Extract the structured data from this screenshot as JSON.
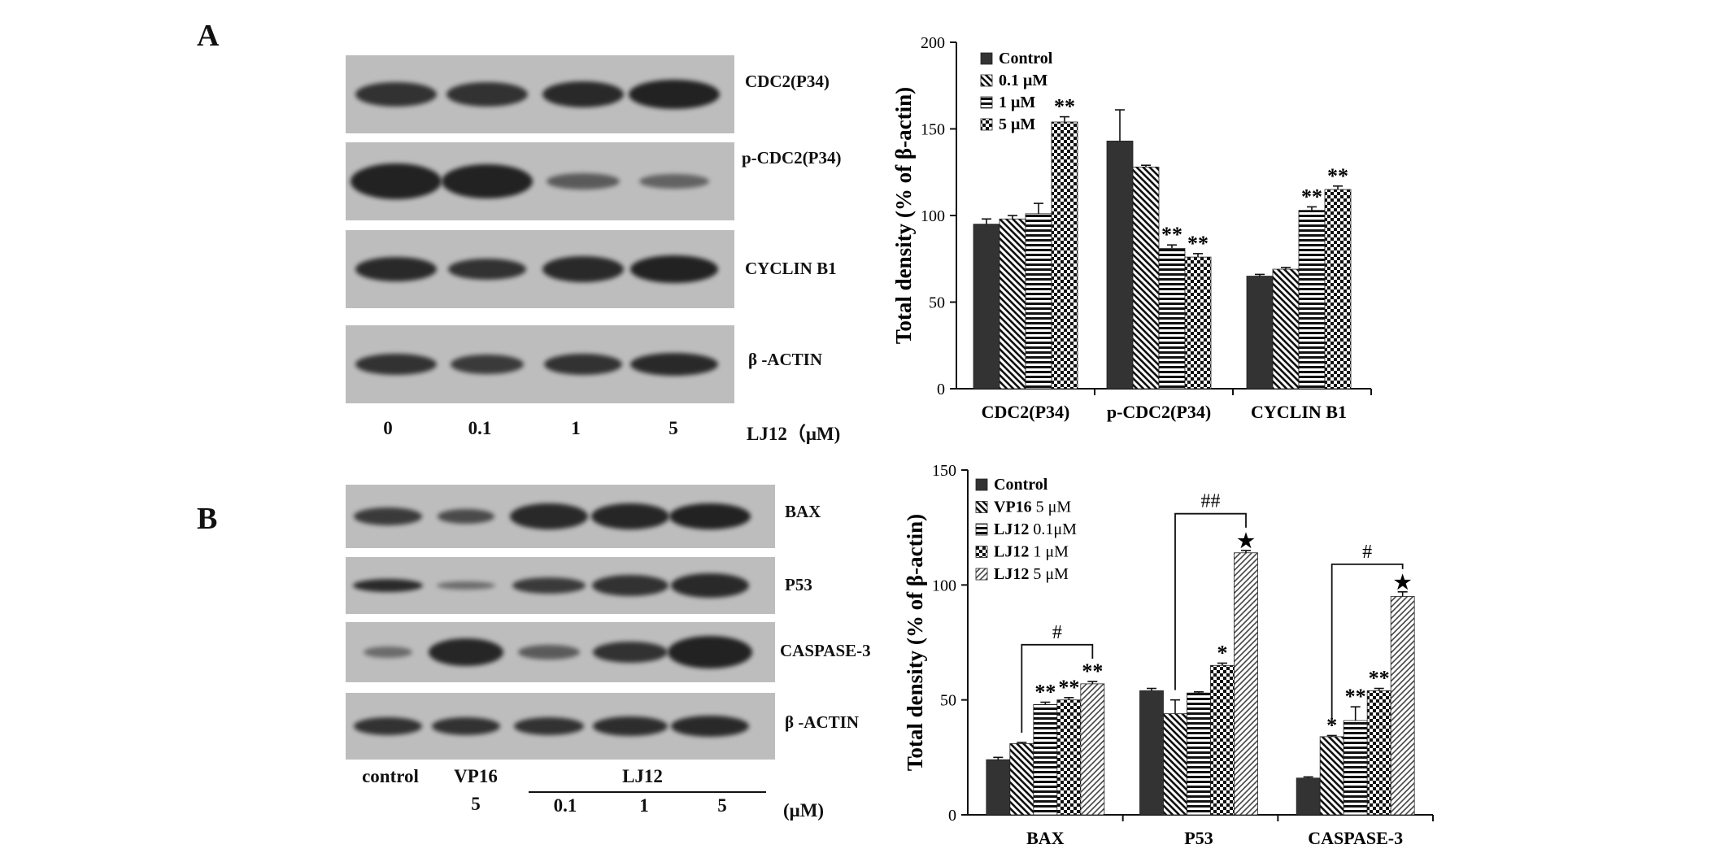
{
  "panels": {
    "A": {
      "letter": "A",
      "blot": {
        "rows": [
          "CDC2(P34)",
          "p-CDC2(P34)",
          "CYCLIN B1",
          "β -ACTIN"
        ],
        "lanes": [
          "0",
          "0.1",
          "1",
          "5"
        ],
        "unit": "LJ12（μM)"
      }
    },
    "B": {
      "letter": "B",
      "blot": {
        "rows": [
          "BAX",
          "P53",
          "CASPASE-3",
          "β -ACTIN"
        ],
        "lanes": [
          "control",
          "VP16",
          "0.1",
          "1",
          "5"
        ],
        "vp16_dose": "5",
        "group_label": "LJ12",
        "unit": "(μM)"
      }
    }
  },
  "chart_data": [
    {
      "type": "bar",
      "ylabel": "Total density (% of β-actin)",
      "ylim": [
        0,
        200
      ],
      "yticks": [
        0,
        50,
        100,
        150,
        200
      ],
      "categories": [
        "CDC2(P34)",
        "p-CDC2(P34)",
        "CYCLIN B1"
      ],
      "legend_position": "top-left",
      "series": [
        {
          "name": "Control",
          "pattern": "solid",
          "values": [
            95,
            143,
            65
          ],
          "errors": [
            3,
            18,
            1
          ]
        },
        {
          "name": "0.1 μM",
          "pattern": "diag-back",
          "values": [
            98,
            128,
            69
          ],
          "errors": [
            2,
            1,
            1
          ]
        },
        {
          "name": "1 μM",
          "pattern": "horiz",
          "values": [
            101,
            81,
            103
          ],
          "errors": [
            6,
            2,
            2
          ]
        },
        {
          "name": "5 μM",
          "pattern": "check",
          "values": [
            154,
            76,
            115
          ],
          "errors": [
            3,
            2,
            2
          ]
        }
      ],
      "annotations": [
        {
          "category": 0,
          "series": 3,
          "text": "**"
        },
        {
          "category": 1,
          "series": 2,
          "text": "**"
        },
        {
          "category": 1,
          "series": 3,
          "text": "**"
        },
        {
          "category": 2,
          "series": 2,
          "text": "**"
        },
        {
          "category": 2,
          "series": 3,
          "text": "**"
        }
      ]
    },
    {
      "type": "bar",
      "ylabel": "Total density (% of β-actin)",
      "ylim": [
        0,
        150
      ],
      "yticks": [
        0,
        50,
        100,
        150
      ],
      "categories": [
        "BAX",
        "P53",
        "CASPASE-3"
      ],
      "legend_position": "top-left",
      "series": [
        {
          "name_bold": "Control",
          "name_rest": "",
          "pattern": "solid",
          "values": [
            24,
            54,
            16
          ],
          "errors": [
            1,
            1,
            0.5
          ]
        },
        {
          "name_bold": "VP16",
          "name_rest": " 5 μM",
          "pattern": "diag-back",
          "values": [
            31,
            44,
            34
          ],
          "errors": [
            0.5,
            6,
            0.5
          ]
        },
        {
          "name_bold": "LJ12",
          "name_rest": " 0.1μM",
          "pattern": "horiz",
          "values": [
            48,
            53,
            41
          ],
          "errors": [
            1,
            0.5,
            6
          ]
        },
        {
          "name_bold": "LJ12",
          "name_rest": " 1  μM",
          "pattern": "check",
          "values": [
            50,
            65,
            54
          ],
          "errors": [
            1,
            1,
            1
          ]
        },
        {
          "name_bold": "LJ12",
          "name_rest": " 5  μM",
          "pattern": "diag-fwd",
          "values": [
            57,
            114,
            95
          ],
          "errors": [
            1,
            1,
            2
          ]
        }
      ],
      "annotations": [
        {
          "category": 0,
          "series": 2,
          "text": "**"
        },
        {
          "category": 0,
          "series": 3,
          "text": "**"
        },
        {
          "category": 0,
          "series": 4,
          "text": "**"
        },
        {
          "category": 1,
          "series": 3,
          "text": "*"
        },
        {
          "category": 1,
          "series": 4,
          "text": "★"
        },
        {
          "category": 2,
          "series": 1,
          "text": "*"
        },
        {
          "category": 2,
          "series": 2,
          "text": "**"
        },
        {
          "category": 2,
          "series": 3,
          "text": "**"
        },
        {
          "category": 2,
          "series": 4,
          "text": "★"
        }
      ],
      "brackets": [
        {
          "category": 0,
          "from_series": 1,
          "to_series": 4,
          "level": 74,
          "text": "#"
        },
        {
          "category": 1,
          "from_series": 1,
          "to_series": 4,
          "level": 131,
          "text": "##"
        },
        {
          "category": 2,
          "from_series": 1,
          "to_series": 4,
          "level": 109,
          "text": "#"
        }
      ]
    }
  ]
}
